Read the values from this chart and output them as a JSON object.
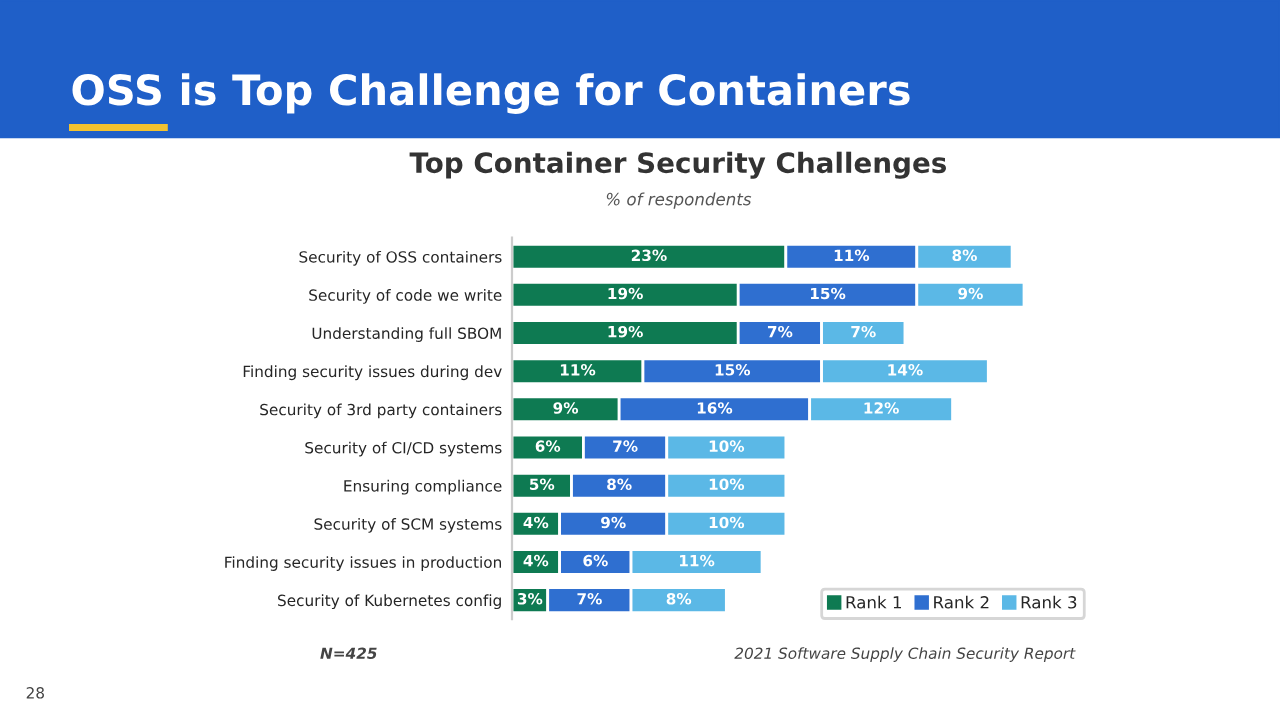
{
  "chart_data": {
    "type": "bar",
    "orientation": "horizontal",
    "stacked": true,
    "title": "OSS is Top Challenge for Containers",
    "subtitle": "Top Container Security Challenges",
    "xlabel": "% of respondents",
    "categories": [
      "Security of OSS containers",
      "Security of code we write",
      "Understanding full SBOM",
      "Finding security issues during dev",
      "Security of 3rd party containers",
      "Security of CI/CD systems",
      "Ensuring compliance",
      "Security of SCM systems",
      "Finding security issues in production",
      "Security of Kubernetes config"
    ],
    "series": [
      {
        "name": "Rank 1",
        "color": "#0e7a52",
        "values": [
          23,
          19,
          19,
          11,
          9,
          6,
          5,
          4,
          4,
          3
        ],
        "value_labels": [
          "23%",
          "19%",
          "19%",
          "11%",
          "9%",
          "6%",
          "5%",
          "4%",
          "4%",
          "3%"
        ]
      },
      {
        "name": "Rank 2",
        "color": "#2f6fd0",
        "values": [
          11,
          15,
          7,
          15,
          16,
          7,
          8,
          9,
          6,
          7
        ],
        "value_labels": [
          "11%",
          "15%",
          "7%",
          "15%",
          "16%",
          "7%",
          "8%",
          "9%",
          "6%",
          "7%"
        ]
      },
      {
        "name": "Rank 3",
        "color": "#5bb8e6",
        "values": [
          8,
          9,
          7,
          14,
          12,
          10,
          10,
          10,
          11,
          8
        ],
        "value_labels": [
          "8%",
          "9%",
          "7%",
          "14%",
          "12%",
          "10%",
          "10%",
          "10%",
          "11%",
          "8%"
        ]
      }
    ],
    "legend": "bottom right",
    "annotations": [
      "N=425",
      "2021 Software Supply Chain Security Report",
      "28"
    ]
  }
}
